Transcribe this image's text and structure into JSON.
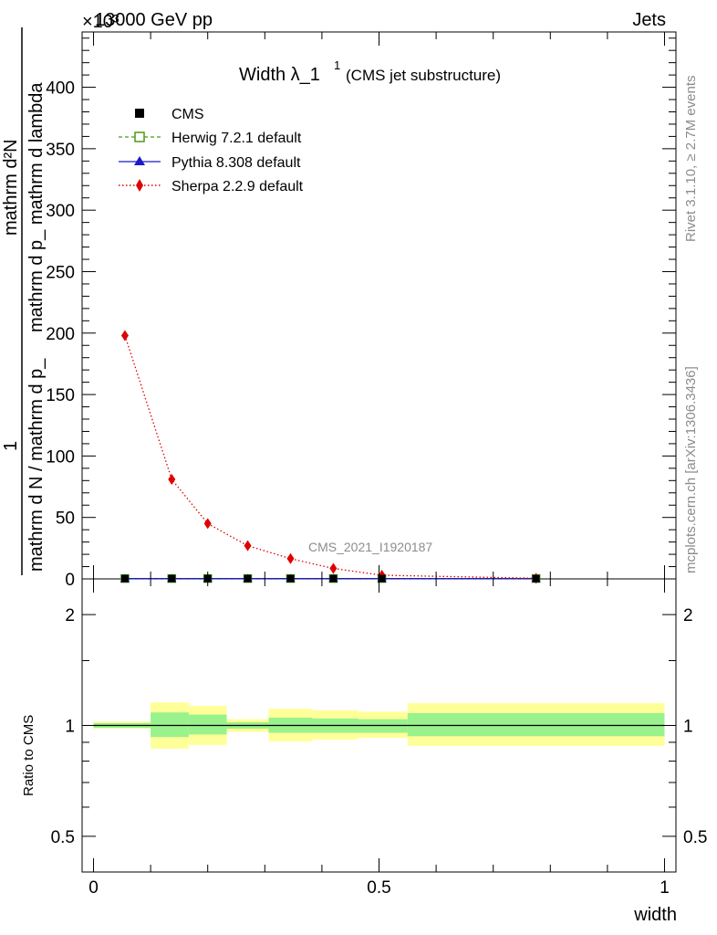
{
  "header": {
    "energy_label": "13000 GeV pp",
    "process_label": "Jets",
    "exponent_label": "×10³"
  },
  "side_labels": {
    "rivet": "Rivet 3.1.10, ≥ 2.7M events",
    "mcplots": "mcplots.cern.ch [arXiv:1306.3436]"
  },
  "main_plot": {
    "title_main": "Width λ_1",
    "title_sup": "1",
    "title_sub": "(CMS jet substructure)",
    "ylabel_top": "mathrm d²N",
    "ylabel_bottom": "mathrm d p_ mathrm d lambda",
    "ylabel2_top": "1",
    "ylabel2_bottom": "mathrm d N / mathrm d p_",
    "watermark": "CMS_2021_I1920187",
    "yticks": [
      0,
      50,
      100,
      150,
      200,
      250,
      300,
      350,
      400
    ],
    "ylim": [
      0,
      445
    ]
  },
  "legend": [
    {
      "name": "CMS",
      "color": "#000000",
      "marker": "square-filled",
      "line": "none"
    },
    {
      "name": "Herwig 7.2.1 default",
      "color": "#4a9a1a",
      "marker": "square-open",
      "line": "dashed"
    },
    {
      "name": "Pythia 8.308 default",
      "color": "#1a1acc",
      "marker": "triangle",
      "line": "solid"
    },
    {
      "name": "Sherpa 2.2.9 default",
      "color": "#e00000",
      "marker": "diamond",
      "line": "dotted"
    }
  ],
  "ratio_plot": {
    "ylabel": "Ratio to CMS",
    "yticks": [
      0.5,
      1,
      2
    ],
    "ytick_labels": [
      "0.5",
      "1",
      "2"
    ],
    "ylim": [
      0.4,
      2.5
    ],
    "log_scale": true
  },
  "x_axis": {
    "label": "width",
    "ticks": [
      0,
      0.5,
      1
    ],
    "tick_labels": [
      "0",
      "0.5",
      "1"
    ],
    "xlim": [
      -0.02,
      1.02
    ]
  },
  "chart_data": {
    "type": "line",
    "title": "Width λ_1^1 (CMS jet substructure)",
    "xlabel": "width",
    "ylabel": "1/(mathrm d N / mathrm d p_) mathrm d²N/(mathrm d p_ mathrm d lambda) ×10³",
    "bin_edges": [
      0,
      0.1,
      0.1667,
      0.2333,
      0.3067,
      0.3833,
      0.4633,
      0.55,
      1.0
    ],
    "x": [
      0.055,
      0.137,
      0.2,
      0.27,
      0.345,
      0.42,
      0.505,
      0.775
    ],
    "series": [
      {
        "name": "CMS",
        "values": [
          0.3,
          0.3,
          0.3,
          0.3,
          0.3,
          0.3,
          0.3,
          0.3
        ]
      },
      {
        "name": "Herwig 7.2.1 default",
        "values": [
          0.3,
          0.3,
          0.3,
          0.3,
          0.3,
          0.3,
          0.3,
          0.3
        ]
      },
      {
        "name": "Pythia 8.308 default",
        "values": [
          0.3,
          0.3,
          0.3,
          0.3,
          0.3,
          0.3,
          0.3,
          0.3
        ]
      },
      {
        "name": "Sherpa 2.2.9 default",
        "values": [
          198,
          81,
          45,
          27,
          16.5,
          8.5,
          3,
          0.5
        ]
      }
    ],
    "ratio_bands": {
      "inner": [
        [
          0.985,
          1.015
        ],
        [
          0.93,
          1.085
        ],
        [
          0.945,
          1.07
        ],
        [
          0.98,
          1.02
        ],
        [
          0.955,
          1.05
        ],
        [
          0.955,
          1.045
        ],
        [
          0.955,
          1.04
        ],
        [
          0.935,
          1.08
        ]
      ],
      "outer": [
        [
          0.98,
          1.025
        ],
        [
          0.865,
          1.155
        ],
        [
          0.885,
          1.13
        ],
        [
          0.96,
          1.04
        ],
        [
          0.905,
          1.11
        ],
        [
          0.915,
          1.1
        ],
        [
          0.925,
          1.09
        ],
        [
          0.88,
          1.15
        ]
      ]
    },
    "ylim": [
      0,
      445
    ],
    "grid": false,
    "legend_position": "top-left"
  }
}
